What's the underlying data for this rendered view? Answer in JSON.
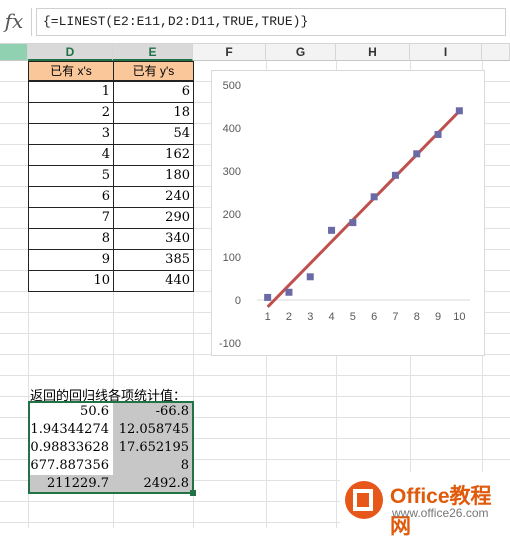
{
  "formula_bar": {
    "fx_label": "fx",
    "formula": "{=LINEST(E2:E11,D2:D11,TRUE,TRUE)}"
  },
  "columns": [
    "D",
    "E",
    "F",
    "G",
    "H",
    "I"
  ],
  "table": {
    "headers": [
      "已有 x's",
      "已有 y's"
    ],
    "rows": [
      [
        "1",
        "6"
      ],
      [
        "2",
        "18"
      ],
      [
        "3",
        "54"
      ],
      [
        "4",
        "162"
      ],
      [
        "5",
        "180"
      ],
      [
        "6",
        "240"
      ],
      [
        "7",
        "290"
      ],
      [
        "8",
        "340"
      ],
      [
        "9",
        "385"
      ],
      [
        "10",
        "440"
      ]
    ]
  },
  "result_caption": "返回的回归线各项统计值：",
  "results": [
    [
      "50.6",
      "-66.8"
    ],
    [
      "1.94344274",
      "12.058745"
    ],
    [
      "0.98833628",
      "17.652195"
    ],
    [
      "677.887356",
      "8"
    ],
    [
      "211229.7",
      "2492.8"
    ]
  ],
  "chart_data": {
    "type": "scatter",
    "x": [
      1,
      2,
      3,
      4,
      5,
      6,
      7,
      8,
      9,
      10
    ],
    "y": [
      6,
      18,
      54,
      162,
      180,
      240,
      290,
      340,
      385,
      440
    ],
    "trendline": {
      "x": [
        1,
        10
      ],
      "y": [
        -16.2,
        439.2
      ]
    },
    "x_ticks": [
      "1",
      "2",
      "3",
      "4",
      "5",
      "6",
      "7",
      "8",
      "9",
      "10"
    ],
    "y_ticks": [
      "-100",
      "0",
      "100",
      "200",
      "300",
      "400",
      "500"
    ],
    "ylim": [
      -100,
      500
    ],
    "xlim": [
      0.5,
      10.5
    ],
    "marker_color": "#6a6aa6",
    "line_color": "#c0504d",
    "grid": false
  },
  "logo": {
    "title": "Office教程网",
    "url": "www.office26.com"
  }
}
